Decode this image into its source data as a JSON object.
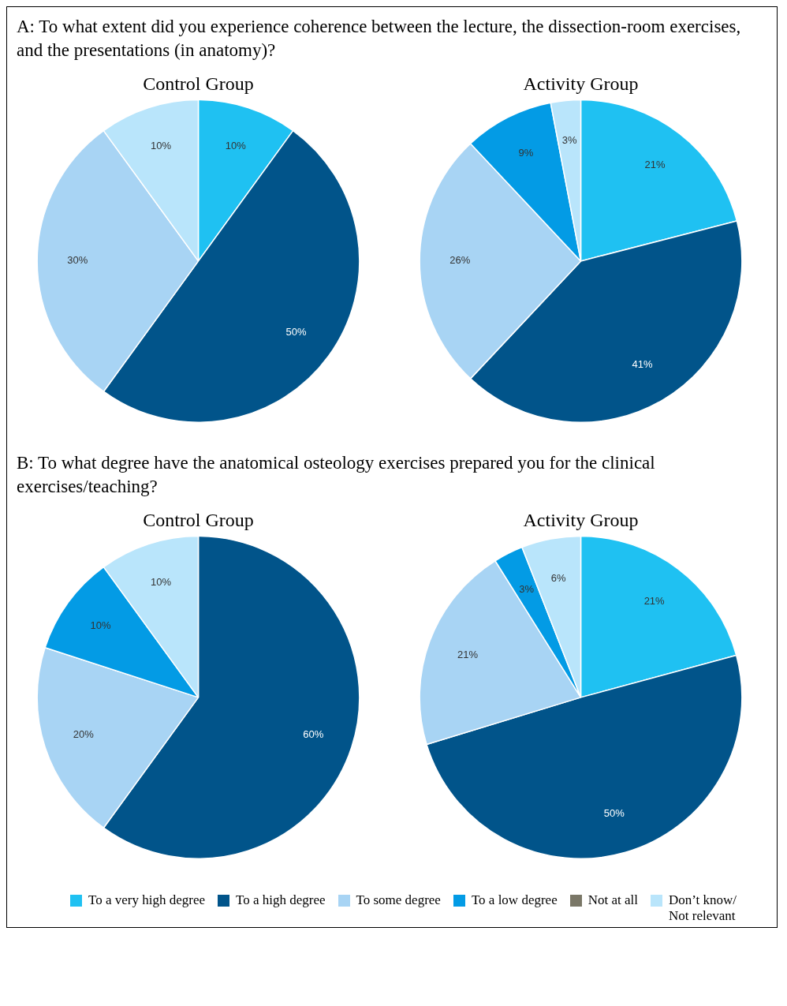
{
  "chart_data": [
    {
      "type": "pie",
      "title": "Control Group",
      "legend": "bottom",
      "annotations": [
        "A: To what extent did you experience coherence between the lecture, the dissection-room exercises, and the presentations (in anatomy)?"
      ],
      "categories": [
        "To a very high degree",
        "To a high degree",
        "To some degree",
        "To a low degree",
        "Not at all",
        "Don’t know/ Not relevant"
      ],
      "values": [
        10,
        50,
        30,
        0,
        0,
        10
      ],
      "value_labels": [
        "10%",
        "50%",
        "30%",
        null,
        null,
        "10%"
      ],
      "colors": [
        "#1fc1f2",
        "#01548a",
        "#a8d4f4",
        "#039be5",
        "#7a7767",
        "#b9e5fb"
      ]
    },
    {
      "type": "pie",
      "title": "Activity Group",
      "categories": [
        null,
        null,
        null,
        null,
        null,
        null
      ],
      "values": [
        21,
        41,
        26,
        9,
        0,
        3
      ],
      "value_labels": [
        "21%",
        "41%",
        "26%",
        "9%",
        null,
        "3%"
      ],
      "colors": [
        "#1fc1f2",
        "#01548a",
        "#a8d4f4",
        "#039be5",
        "#7a7767",
        "#b9e5fb"
      ]
    },
    {
      "type": "pie",
      "title": "Control Group",
      "annotations": [
        "B: To what degree have the anatomical osteology exercises prepared you for the clinical exercises/teaching?"
      ],
      "categories": [
        null,
        null,
        null,
        null,
        null,
        null
      ],
      "values": [
        0,
        60,
        20,
        10,
        0,
        10
      ],
      "value_labels": [
        null,
        "60%",
        "20%",
        "10%",
        null,
        "10%"
      ],
      "colors": [
        "#1fc1f2",
        "#01548a",
        "#a8d4f4",
        "#039be5",
        "#7a7767",
        "#b9e5fb"
      ]
    },
    {
      "type": "pie",
      "title": "Activity Group",
      "categories": [
        null,
        null,
        null,
        null,
        null,
        null
      ],
      "values": [
        21,
        50,
        21,
        3,
        0,
        6
      ],
      "value_labels": [
        "21%",
        "50%",
        "21%",
        "3%",
        null,
        "6%"
      ],
      "colors": [
        "#1fc1f2",
        "#01548a",
        "#a8d4f4",
        "#039be5",
        "#7a7767",
        "#b9e5fb"
      ]
    }
  ]
}
